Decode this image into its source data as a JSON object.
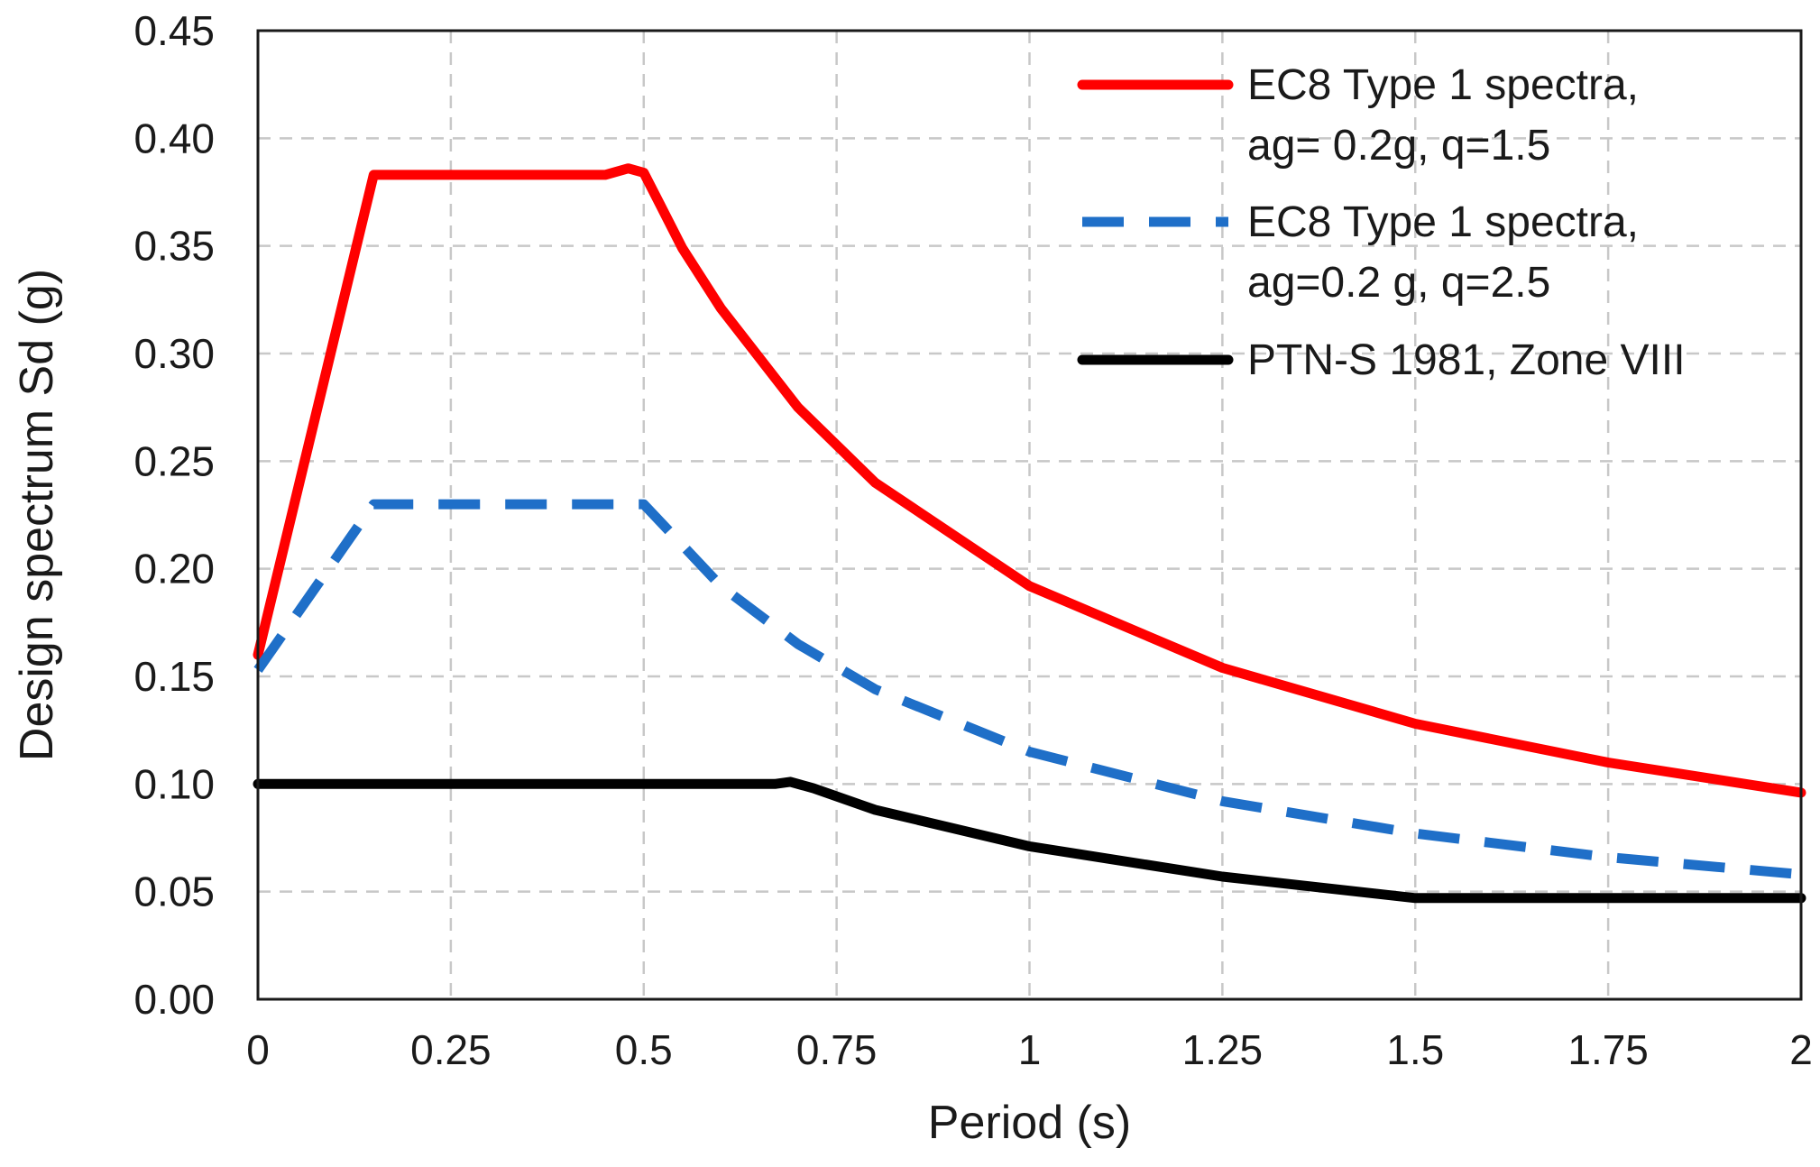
{
  "chart_data": {
    "type": "line",
    "title": "",
    "xlabel": "Period (s)",
    "ylabel": "Design spectrum Sd (g)",
    "xlim": [
      0,
      2
    ],
    "ylim": [
      0,
      0.45
    ],
    "grid": true,
    "legend_position": "top-right",
    "x_ticks": [
      "0",
      "0.25",
      "0.5",
      "0.75",
      "1",
      "1.25",
      "1.5",
      "1.75",
      "2"
    ],
    "y_ticks": [
      "0.00",
      "0.05",
      "0.10",
      "0.15",
      "0.20",
      "0.25",
      "0.30",
      "0.35",
      "0.40",
      "0.45"
    ],
    "series": [
      {
        "name": "EC8 Type 1 spectra, ag= 0.2g, q=1.5",
        "legend_lines": [
          "EC8 Type 1 spectra,",
          "ag= 0.2g, q=1.5"
        ],
        "color": "#ff0000",
        "style": "solid",
        "x": [
          0,
          0.15,
          0.16,
          0.45,
          0.48,
          0.5,
          0.52,
          0.55,
          0.6,
          0.7,
          0.8,
          1.0,
          1.25,
          1.5,
          1.75,
          2.0
        ],
        "y": [
          0.16,
          0.383,
          0.383,
          0.383,
          0.386,
          0.384,
          0.37,
          0.349,
          0.321,
          0.275,
          0.24,
          0.192,
          0.154,
          0.128,
          0.11,
          0.096
        ]
      },
      {
        "name": "EC8 Type 1 spectra, ag=0.2 g, q=2.5",
        "legend_lines": [
          "EC8 Type 1 spectra,",
          "ag=0.2 g, q=2.5"
        ],
        "color": "#1f6fc8",
        "style": "dashed",
        "x": [
          0,
          0.15,
          0.18,
          0.5,
          0.6,
          0.7,
          0.8,
          1.0,
          1.25,
          1.5,
          1.75,
          2.0
        ],
        "y": [
          0.153,
          0.23,
          0.23,
          0.23,
          0.192,
          0.165,
          0.144,
          0.115,
          0.092,
          0.077,
          0.066,
          0.058
        ]
      },
      {
        "name": "PTN-S 1981, Zone VIII",
        "legend_lines": [
          "PTN-S 1981, Zone VIII"
        ],
        "color": "#000000",
        "style": "solid",
        "x": [
          0,
          0.67,
          0.69,
          0.72,
          0.8,
          1.0,
          1.25,
          1.5,
          2.0
        ],
        "y": [
          0.1,
          0.1,
          0.101,
          0.098,
          0.088,
          0.071,
          0.057,
          0.047,
          0.047
        ]
      }
    ]
  }
}
